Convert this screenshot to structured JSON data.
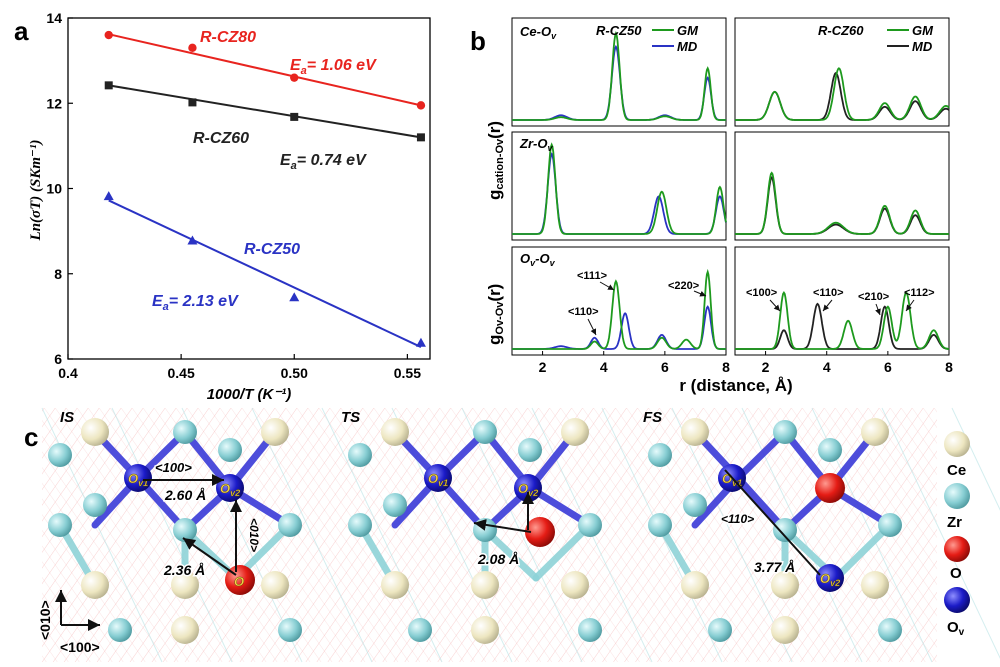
{
  "panel_labels": {
    "a": "a",
    "b": "b",
    "c": "c"
  },
  "colors": {
    "red": "#e8241f",
    "black": "#222222",
    "blue": "#2a33c4",
    "green": "#1e9a1e",
    "ce": "#efe9c4",
    "o": "#8fd3d8",
    "zr": "#e51c15",
    "ov": "#1b1bc8",
    "bond": "#e03030"
  },
  "panel_a": {
    "ylabel": "Ln(σT) (SKm⁻¹)",
    "xlabel": "1000/T (K⁻¹)",
    "series_labels": {
      "rcz80": "R-CZ80",
      "rcz60": "R-CZ60",
      "rcz50": "R-CZ50"
    },
    "ea_labels": {
      "rcz80": "= 1.06 eV",
      "rcz60": "= 0.74 eV",
      "rcz50": "= 2.13 eV"
    },
    "ea_symbol": "E",
    "ea_sub": "a"
  },
  "panel_b": {
    "ylabel_top": "g",
    "ylabel_top_sub": "cation-Ov",
    "ylabel_top_tail": "(r)",
    "ylabel_bot": "g",
    "ylabel_bot_sub": "Ov-Ov",
    "ylabel_bot_tail": "(r)",
    "xlabel": "r (distance, Å)",
    "titles": {
      "left": "R-CZ50",
      "right": "R-CZ60"
    },
    "row_labels": [
      "Ce-O",
      "Zr-O",
      "O"
    ],
    "row_label_subs": [
      "v",
      "v",
      "v"
    ],
    "row3_tail": "-O",
    "legend_left": [
      "GM",
      "MD"
    ],
    "legend_right": [
      "GM",
      "MD"
    ],
    "peak_labels_left": [
      "<111>",
      "<220>",
      "<110>"
    ],
    "peak_labels_right": [
      "<100>",
      "<110>",
      "<210>",
      "<112>"
    ]
  },
  "panel_c": {
    "state_labels": [
      "IS",
      "TS",
      "FS"
    ],
    "site_labels": {
      "ov1": "O",
      "ov1_sub": "v1",
      "ov2": "O",
      "ov2_sub": "v2",
      "o": "O"
    },
    "is_annotations": {
      "dir1": "<100>",
      "dist1": "2.60 Å",
      "dir2": "<010>",
      "dist2": "2.36 Å"
    },
    "ts_annotations": {
      "dist": "2.08 Å"
    },
    "fs_annotations": {
      "dir": "<110>",
      "dist": "3.77 Å"
    },
    "axis_labels": {
      "y": "<010>",
      "x": "<100>"
    },
    "legend": [
      "Ce",
      "O",
      "Zr",
      "O",
      "O"
    ],
    "legend_ov_sub": "v"
  },
  "chart_data": [
    {
      "type": "scatter",
      "panel": "a",
      "xlabel": "1000/T (K⁻¹)",
      "ylabel": "Ln(σT) (SKm⁻¹)",
      "xlim": [
        0.4,
        0.56
      ],
      "ylim": [
        6,
        14
      ],
      "xticks": [
        0.4,
        0.45,
        0.5,
        0.55
      ],
      "yticks": [
        6,
        8,
        10,
        12,
        14
      ],
      "series": [
        {
          "name": "R-CZ80",
          "marker": "circle",
          "color": "#e8241f",
          "x": [
            0.418,
            0.455,
            0.5,
            0.556
          ],
          "y": [
            13.6,
            13.3,
            12.6,
            11.95
          ],
          "fit": [
            [
              0.418,
              13.62
            ],
            [
              0.556,
              11.95
            ]
          ],
          "annotation": "Ea= 1.06 eV"
        },
        {
          "name": "R-CZ60",
          "marker": "square",
          "color": "#222222",
          "x": [
            0.418,
            0.455,
            0.5,
            0.556
          ],
          "y": [
            12.42,
            12.02,
            11.68,
            11.2
          ],
          "fit": [
            [
              0.418,
              12.42
            ],
            [
              0.556,
              11.2
            ]
          ],
          "annotation": "Ea= 0.74 eV"
        },
        {
          "name": "R-CZ50",
          "marker": "triangle",
          "color": "#2a33c4",
          "x": [
            0.418,
            0.455,
            0.5,
            0.556
          ],
          "y": [
            9.82,
            8.78,
            7.45,
            6.38
          ],
          "fit": [
            [
              0.418,
              9.72
            ],
            [
              0.556,
              6.28
            ]
          ],
          "annotation": "Ea= 2.13 eV"
        }
      ]
    },
    {
      "type": "line",
      "panel": "b",
      "xlabel": "r (distance, Å)",
      "xlim": [
        1,
        8
      ],
      "xticks": [
        2,
        4,
        6,
        8
      ],
      "subplots": [
        {
          "row": "Ce-Ov",
          "column": "R-CZ50",
          "series": [
            {
              "name": "GM",
              "peaks": [
                [
                  4.4,
                  0.92,
                  0.12
                ],
                [
                  7.4,
                  0.55,
                  0.1
                ],
                [
                  2.6,
                  0.03,
                  0.2
                ],
                [
                  6.0,
                  0.04,
                  0.2
                ]
              ]
            },
            {
              "name": "MD",
              "peaks": [
                [
                  4.4,
                  0.78,
                  0.13
                ],
                [
                  7.4,
                  0.45,
                  0.11
                ],
                [
                  2.6,
                  0.05,
                  0.2
                ],
                [
                  6.0,
                  0.05,
                  0.2
                ]
              ]
            }
          ]
        },
        {
          "row": "Ce-Ov",
          "column": "R-CZ60",
          "series": [
            {
              "name": "GM",
              "peaks": [
                [
                  2.3,
                  0.3,
                  0.18
                ],
                [
                  4.4,
                  0.55,
                  0.16
                ],
                [
                  5.9,
                  0.18,
                  0.18
                ],
                [
                  6.9,
                  0.25,
                  0.18
                ],
                [
                  7.9,
                  0.15,
                  0.2
                ]
              ]
            },
            {
              "name": "MD",
              "peaks": [
                [
                  2.3,
                  0.3,
                  0.18
                ],
                [
                  4.3,
                  0.5,
                  0.16
                ],
                [
                  5.9,
                  0.14,
                  0.18
                ],
                [
                  6.9,
                  0.2,
                  0.18
                ],
                [
                  7.9,
                  0.12,
                  0.2
                ]
              ]
            }
          ]
        },
        {
          "row": "Zr-Ov",
          "column": "R-CZ50",
          "series": [
            {
              "name": "GM",
              "peaks": [
                [
                  2.3,
                  0.95,
                  0.12
                ],
                [
                  5.9,
                  0.45,
                  0.15
                ],
                [
                  7.8,
                  0.5,
                  0.12
                ]
              ]
            },
            {
              "name": "MD",
              "peaks": [
                [
                  2.3,
                  0.85,
                  0.13
                ],
                [
                  5.8,
                  0.4,
                  0.15
                ],
                [
                  7.8,
                  0.4,
                  0.13
                ]
              ]
            }
          ]
        },
        {
          "row": "Zr-Ov",
          "column": "R-CZ60",
          "series": [
            {
              "name": "GM",
              "peaks": [
                [
                  2.2,
                  0.65,
                  0.13
                ],
                [
                  4.3,
                  0.12,
                  0.25
                ],
                [
                  5.9,
                  0.3,
                  0.16
                ],
                [
                  6.9,
                  0.25,
                  0.16
                ]
              ]
            },
            {
              "name": "MD",
              "peaks": [
                [
                  2.2,
                  0.6,
                  0.13
                ],
                [
                  4.3,
                  0.1,
                  0.25
                ],
                [
                  5.9,
                  0.27,
                  0.16
                ],
                [
                  6.9,
                  0.2,
                  0.16
                ]
              ]
            }
          ]
        },
        {
          "row": "Ov-Ov",
          "column": "R-CZ50",
          "series": [
            {
              "name": "GM",
              "peaks": [
                [
                  4.4,
                  0.72,
                  0.12
                ],
                [
                  7.4,
                  0.82,
                  0.1
                ],
                [
                  3.7,
                  0.08,
                  0.12
                ],
                [
                  5.9,
                  0.12,
                  0.14
                ],
                [
                  6.7,
                  0.1,
                  0.14
                ]
              ]
            },
            {
              "name": "MD",
              "peaks": [
                [
                  4.7,
                  0.38,
                  0.12
                ],
                [
                  7.4,
                  0.45,
                  0.11
                ],
                [
                  3.7,
                  0.12,
                  0.12
                ],
                [
                  5.9,
                  0.15,
                  0.14
                ],
                [
                  2.6,
                  0.03,
                  0.2
                ]
              ]
            }
          ]
        },
        {
          "row": "Ov-Ov",
          "column": "R-CZ60",
          "series": [
            {
              "name": "GM",
              "peaks": [
                [
                  2.6,
                  0.6,
                  0.12
                ],
                [
                  4.7,
                  0.3,
                  0.14
                ],
                [
                  6.0,
                  0.45,
                  0.13
                ],
                [
                  6.6,
                  0.6,
                  0.14
                ],
                [
                  7.5,
                  0.2,
                  0.15
                ]
              ]
            },
            {
              "name": "MD",
              "peaks": [
                [
                  2.6,
                  0.2,
                  0.12
                ],
                [
                  3.7,
                  0.48,
                  0.14
                ],
                [
                  5.9,
                  0.45,
                  0.13
                ],
                [
                  7.5,
                  0.15,
                  0.15
                ]
              ]
            }
          ]
        }
      ]
    }
  ]
}
